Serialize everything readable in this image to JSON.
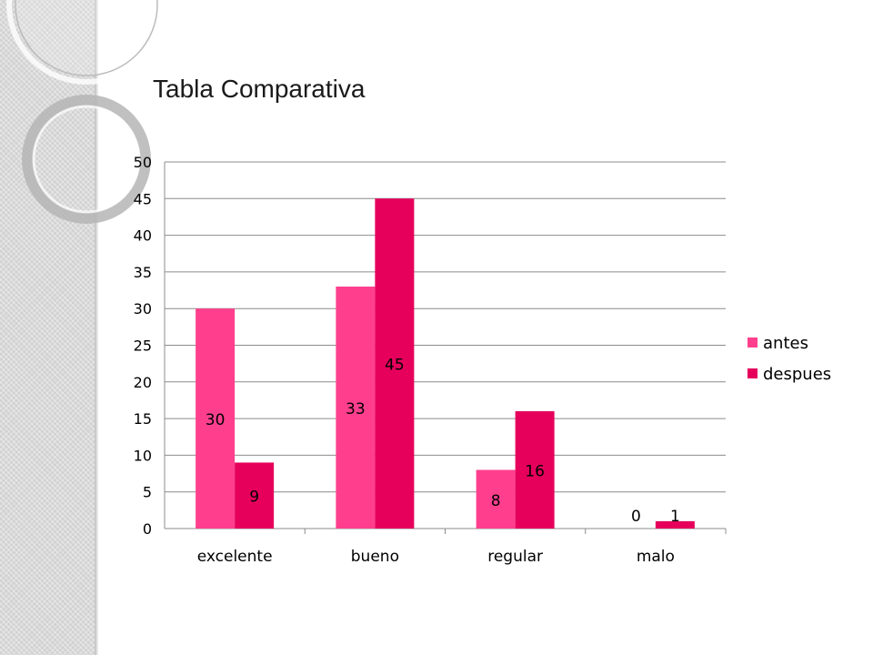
{
  "title": "Tabla Comparativa",
  "chart_data": {
    "type": "bar",
    "title": "Tabla Comparativa",
    "categories": [
      "excelente",
      "bueno",
      "regular",
      "malo"
    ],
    "series": [
      {
        "name": "antes",
        "values": [
          30,
          33,
          8,
          0
        ],
        "color": "#ff3f8e"
      },
      {
        "name": "despues",
        "values": [
          9,
          45,
          16,
          1
        ],
        "color": "#e6005c"
      }
    ],
    "yticks": [
      "0",
      "5",
      "10",
      "15",
      "20",
      "25",
      "30",
      "35",
      "40",
      "45",
      "50"
    ],
    "ylim": [
      0,
      50
    ],
    "grid": true,
    "legend": "right",
    "data_labels": true
  }
}
